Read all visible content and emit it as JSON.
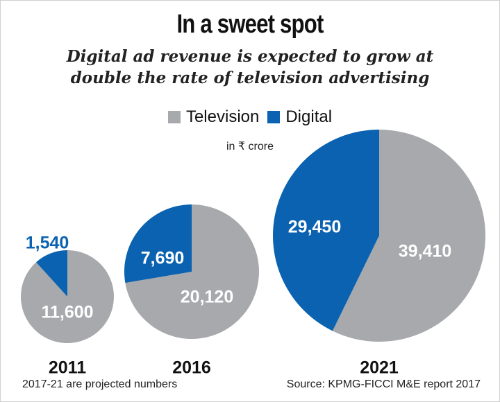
{
  "header": {
    "title": "In a sweet spot",
    "subtitle_line1": "Digital ad revenue is expected to grow at",
    "subtitle_line2": "double the rate of television advertising"
  },
  "unit_label": "in ₹ crore",
  "footer": {
    "note": "2017-21 are projected numbers",
    "source": "Source: KPMG-FICCI M&E report 2017"
  },
  "colors": {
    "television": "#a7a9ac",
    "digital": "#0a62b0",
    "label_light": "#ffffff"
  },
  "chart_data": {
    "type": "pie",
    "series_names": [
      "Television",
      "Digital"
    ],
    "legend_position": "top-center",
    "pies": [
      {
        "year": "2011",
        "values": [
          11600,
          1540
        ],
        "labels": [
          "11,600",
          "1,540"
        ]
      },
      {
        "year": "2016",
        "values": [
          20120,
          7690
        ],
        "labels": [
          "20,120",
          "7,690"
        ]
      },
      {
        "year": "2021",
        "values": [
          39410,
          29450
        ],
        "labels": [
          "39,410",
          "29,450"
        ]
      }
    ]
  }
}
